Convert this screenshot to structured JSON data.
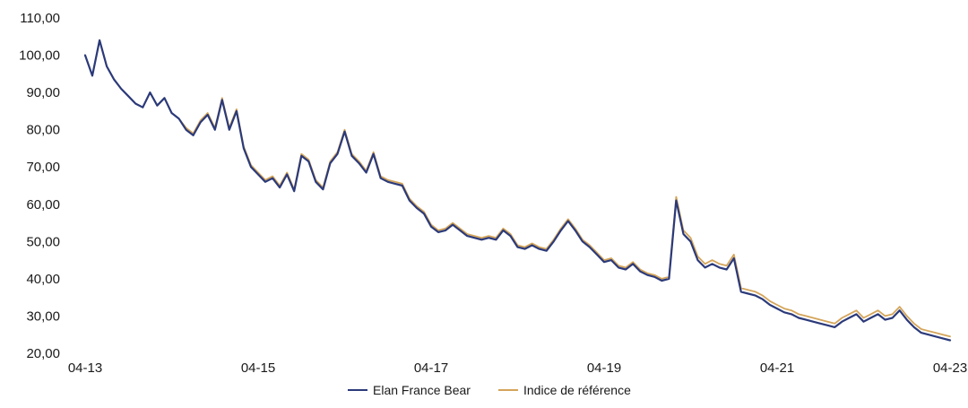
{
  "chart_data": {
    "type": "line",
    "title": "",
    "xlabel": "",
    "ylabel": "",
    "ylim": [
      20,
      110
    ],
    "xlim": [
      "2013-04",
      "2023-04"
    ],
    "grid": false,
    "legend_position": "bottom-center",
    "y_ticks": [
      {
        "value": 20,
        "label": "20,00"
      },
      {
        "value": 30,
        "label": "30,00"
      },
      {
        "value": 40,
        "label": "40,00"
      },
      {
        "value": 50,
        "label": "50,00"
      },
      {
        "value": 60,
        "label": "60,00"
      },
      {
        "value": 70,
        "label": "70,00"
      },
      {
        "value": 80,
        "label": "80,00"
      },
      {
        "value": 90,
        "label": "90,00"
      },
      {
        "value": 100,
        "label": "100,00"
      },
      {
        "value": 110,
        "label": "110,00"
      }
    ],
    "x_ticks": [
      {
        "value": "2013-04",
        "label": "04-13"
      },
      {
        "value": "2015-04",
        "label": "04-15"
      },
      {
        "value": "2017-04",
        "label": "04-17"
      },
      {
        "value": "2019-04",
        "label": "04-19"
      },
      {
        "value": "2021-04",
        "label": "04-21"
      },
      {
        "value": "2023-04",
        "label": "04-23"
      }
    ],
    "series": [
      {
        "name": "Elan France Bear",
        "color": "#2b3a7a",
        "points": [
          [
            "2013-04",
            100.0
          ],
          [
            "2013-05",
            94.5
          ],
          [
            "2013-06",
            104.0
          ],
          [
            "2013-07",
            97.0
          ],
          [
            "2013-08",
            93.5
          ],
          [
            "2013-09",
            91.0
          ],
          [
            "2013-10",
            89.0
          ],
          [
            "2013-11",
            87.0
          ],
          [
            "2013-12",
            86.0
          ],
          [
            "2014-01",
            90.0
          ],
          [
            "2014-02",
            86.5
          ],
          [
            "2014-03",
            88.5
          ],
          [
            "2014-04",
            84.5
          ],
          [
            "2014-05",
            83.0
          ],
          [
            "2014-06",
            80.0
          ],
          [
            "2014-07",
            78.5
          ],
          [
            "2014-08",
            82.0
          ],
          [
            "2014-09",
            84.0
          ],
          [
            "2014-10",
            80.0
          ],
          [
            "2014-11",
            88.0
          ],
          [
            "2014-12",
            80.0
          ],
          [
            "2015-01",
            85.0
          ],
          [
            "2015-02",
            75.0
          ],
          [
            "2015-03",
            70.0
          ],
          [
            "2015-04",
            68.0
          ],
          [
            "2015-05",
            66.0
          ],
          [
            "2015-06",
            67.0
          ],
          [
            "2015-07",
            64.5
          ],
          [
            "2015-08",
            68.0
          ],
          [
            "2015-09",
            63.5
          ],
          [
            "2015-10",
            73.0
          ],
          [
            "2015-11",
            71.5
          ],
          [
            "2015-12",
            66.0
          ],
          [
            "2016-01",
            64.0
          ],
          [
            "2016-02",
            71.0
          ],
          [
            "2016-03",
            73.5
          ],
          [
            "2016-04",
            79.5
          ],
          [
            "2016-05",
            73.0
          ],
          [
            "2016-06",
            71.0
          ],
          [
            "2016-07",
            68.5
          ],
          [
            "2016-08",
            73.5
          ],
          [
            "2016-09",
            67.0
          ],
          [
            "2016-10",
            66.0
          ],
          [
            "2016-11",
            65.5
          ],
          [
            "2016-12",
            65.0
          ],
          [
            "2017-01",
            61.0
          ],
          [
            "2017-02",
            59.0
          ],
          [
            "2017-03",
            57.5
          ],
          [
            "2017-04",
            54.0
          ],
          [
            "2017-05",
            52.5
          ],
          [
            "2017-06",
            53.0
          ],
          [
            "2017-07",
            54.5
          ],
          [
            "2017-08",
            53.0
          ],
          [
            "2017-09",
            51.5
          ],
          [
            "2017-10",
            51.0
          ],
          [
            "2017-11",
            50.5
          ],
          [
            "2017-12",
            51.0
          ],
          [
            "2018-01",
            50.5
          ],
          [
            "2018-02",
            53.0
          ],
          [
            "2018-03",
            51.5
          ],
          [
            "2018-04",
            48.5
          ],
          [
            "2018-05",
            48.0
          ],
          [
            "2018-06",
            49.0
          ],
          [
            "2018-07",
            48.0
          ],
          [
            "2018-08",
            47.5
          ],
          [
            "2018-09",
            50.0
          ],
          [
            "2018-10",
            53.0
          ],
          [
            "2018-11",
            55.5
          ],
          [
            "2018-12",
            53.0
          ],
          [
            "2019-01",
            50.0
          ],
          [
            "2019-02",
            48.5
          ],
          [
            "2019-03",
            46.5
          ],
          [
            "2019-04",
            44.5
          ],
          [
            "2019-05",
            45.0
          ],
          [
            "2019-06",
            43.0
          ],
          [
            "2019-07",
            42.5
          ],
          [
            "2019-08",
            44.0
          ],
          [
            "2019-09",
            42.0
          ],
          [
            "2019-10",
            41.0
          ],
          [
            "2019-11",
            40.5
          ],
          [
            "2019-12",
            39.5
          ],
          [
            "2020-01",
            40.0
          ],
          [
            "2020-02",
            61.0
          ],
          [
            "2020-03",
            52.0
          ],
          [
            "2020-04",
            50.0
          ],
          [
            "2020-05",
            45.0
          ],
          [
            "2020-06",
            43.0
          ],
          [
            "2020-07",
            44.0
          ],
          [
            "2020-08",
            43.0
          ],
          [
            "2020-09",
            42.5
          ],
          [
            "2020-10",
            45.5
          ],
          [
            "2020-11",
            36.5
          ],
          [
            "2020-12",
            36.0
          ],
          [
            "2021-01",
            35.5
          ],
          [
            "2021-02",
            34.5
          ],
          [
            "2021-03",
            33.0
          ],
          [
            "2021-04",
            32.0
          ],
          [
            "2021-05",
            31.0
          ],
          [
            "2021-06",
            30.5
          ],
          [
            "2021-07",
            29.5
          ],
          [
            "2021-08",
            29.0
          ],
          [
            "2021-09",
            28.5
          ],
          [
            "2021-10",
            28.0
          ],
          [
            "2021-11",
            27.5
          ],
          [
            "2021-12",
            27.0
          ],
          [
            "2022-01",
            28.5
          ],
          [
            "2022-02",
            29.5
          ],
          [
            "2022-03",
            30.5
          ],
          [
            "2022-04",
            28.5
          ],
          [
            "2022-05",
            29.5
          ],
          [
            "2022-06",
            30.5
          ],
          [
            "2022-07",
            29.0
          ],
          [
            "2022-08",
            29.5
          ],
          [
            "2022-09",
            31.5
          ],
          [
            "2022-10",
            29.0
          ],
          [
            "2022-11",
            27.0
          ],
          [
            "2022-12",
            25.5
          ],
          [
            "2023-01",
            25.0
          ],
          [
            "2023-02",
            24.5
          ],
          [
            "2023-03",
            24.0
          ],
          [
            "2023-04",
            23.5
          ]
        ]
      },
      {
        "name": "Indice de référence",
        "color": "#d4a55a",
        "points": [
          [
            "2013-04",
            100.0
          ],
          [
            "2013-05",
            94.5
          ],
          [
            "2013-06",
            104.0
          ],
          [
            "2013-07",
            97.0
          ],
          [
            "2013-08",
            93.5
          ],
          [
            "2013-09",
            91.0
          ],
          [
            "2013-10",
            89.0
          ],
          [
            "2013-11",
            87.0
          ],
          [
            "2013-12",
            86.0
          ],
          [
            "2014-01",
            90.0
          ],
          [
            "2014-02",
            86.5
          ],
          [
            "2014-03",
            88.5
          ],
          [
            "2014-04",
            84.5
          ],
          [
            "2014-05",
            83.0
          ],
          [
            "2014-06",
            80.5
          ],
          [
            "2014-07",
            79.0
          ],
          [
            "2014-08",
            82.5
          ],
          [
            "2014-09",
            84.5
          ],
          [
            "2014-10",
            80.5
          ],
          [
            "2014-11",
            88.5
          ],
          [
            "2014-12",
            80.5
          ],
          [
            "2015-01",
            85.5
          ],
          [
            "2015-02",
            75.5
          ],
          [
            "2015-03",
            70.5
          ],
          [
            "2015-04",
            68.5
          ],
          [
            "2015-05",
            66.5
          ],
          [
            "2015-06",
            67.5
          ],
          [
            "2015-07",
            65.0
          ],
          [
            "2015-08",
            68.5
          ],
          [
            "2015-09",
            64.0
          ],
          [
            "2015-10",
            73.5
          ],
          [
            "2015-11",
            72.0
          ],
          [
            "2015-12",
            66.5
          ],
          [
            "2016-01",
            64.5
          ],
          [
            "2016-02",
            71.5
          ],
          [
            "2016-03",
            74.0
          ],
          [
            "2016-04",
            80.0
          ],
          [
            "2016-05",
            73.5
          ],
          [
            "2016-06",
            71.5
          ],
          [
            "2016-07",
            69.0
          ],
          [
            "2016-08",
            74.0
          ],
          [
            "2016-09",
            67.5
          ],
          [
            "2016-10",
            66.5
          ],
          [
            "2016-11",
            66.0
          ],
          [
            "2016-12",
            65.5
          ],
          [
            "2017-01",
            61.5
          ],
          [
            "2017-02",
            59.5
          ],
          [
            "2017-03",
            58.0
          ],
          [
            "2017-04",
            54.5
          ],
          [
            "2017-05",
            53.0
          ],
          [
            "2017-06",
            53.5
          ],
          [
            "2017-07",
            55.0
          ],
          [
            "2017-08",
            53.5
          ],
          [
            "2017-09",
            52.0
          ],
          [
            "2017-10",
            51.5
          ],
          [
            "2017-11",
            51.0
          ],
          [
            "2017-12",
            51.5
          ],
          [
            "2018-01",
            51.0
          ],
          [
            "2018-02",
            53.5
          ],
          [
            "2018-03",
            52.0
          ],
          [
            "2018-04",
            49.0
          ],
          [
            "2018-05",
            48.5
          ],
          [
            "2018-06",
            49.5
          ],
          [
            "2018-07",
            48.5
          ],
          [
            "2018-08",
            48.0
          ],
          [
            "2018-09",
            50.5
          ],
          [
            "2018-10",
            53.5
          ],
          [
            "2018-11",
            56.0
          ],
          [
            "2018-12",
            53.5
          ],
          [
            "2019-01",
            50.5
          ],
          [
            "2019-02",
            49.0
          ],
          [
            "2019-03",
            47.0
          ],
          [
            "2019-04",
            45.0
          ],
          [
            "2019-05",
            45.5
          ],
          [
            "2019-06",
            43.5
          ],
          [
            "2019-07",
            43.0
          ],
          [
            "2019-08",
            44.5
          ],
          [
            "2019-09",
            42.5
          ],
          [
            "2019-10",
            41.5
          ],
          [
            "2019-11",
            41.0
          ],
          [
            "2019-12",
            40.0
          ],
          [
            "2020-01",
            40.5
          ],
          [
            "2020-02",
            62.0
          ],
          [
            "2020-03",
            53.0
          ],
          [
            "2020-04",
            51.0
          ],
          [
            "2020-05",
            46.0
          ],
          [
            "2020-06",
            44.0
          ],
          [
            "2020-07",
            45.0
          ],
          [
            "2020-08",
            44.0
          ],
          [
            "2020-09",
            43.5
          ],
          [
            "2020-10",
            46.5
          ],
          [
            "2020-11",
            37.5
          ],
          [
            "2020-12",
            37.0
          ],
          [
            "2021-01",
            36.5
          ],
          [
            "2021-02",
            35.5
          ],
          [
            "2021-03",
            34.0
          ],
          [
            "2021-04",
            33.0
          ],
          [
            "2021-05",
            32.0
          ],
          [
            "2021-06",
            31.5
          ],
          [
            "2021-07",
            30.5
          ],
          [
            "2021-08",
            30.0
          ],
          [
            "2021-09",
            29.5
          ],
          [
            "2021-10",
            29.0
          ],
          [
            "2021-11",
            28.5
          ],
          [
            "2021-12",
            28.0
          ],
          [
            "2022-01",
            29.5
          ],
          [
            "2022-02",
            30.5
          ],
          [
            "2022-03",
            31.5
          ],
          [
            "2022-04",
            29.5
          ],
          [
            "2022-05",
            30.5
          ],
          [
            "2022-06",
            31.5
          ],
          [
            "2022-07",
            30.0
          ],
          [
            "2022-08",
            30.5
          ],
          [
            "2022-09",
            32.5
          ],
          [
            "2022-10",
            30.0
          ],
          [
            "2022-11",
            28.0
          ],
          [
            "2022-12",
            26.5
          ],
          [
            "2023-01",
            26.0
          ],
          [
            "2023-02",
            25.5
          ],
          [
            "2023-03",
            25.0
          ],
          [
            "2023-04",
            24.5
          ]
        ]
      }
    ]
  }
}
